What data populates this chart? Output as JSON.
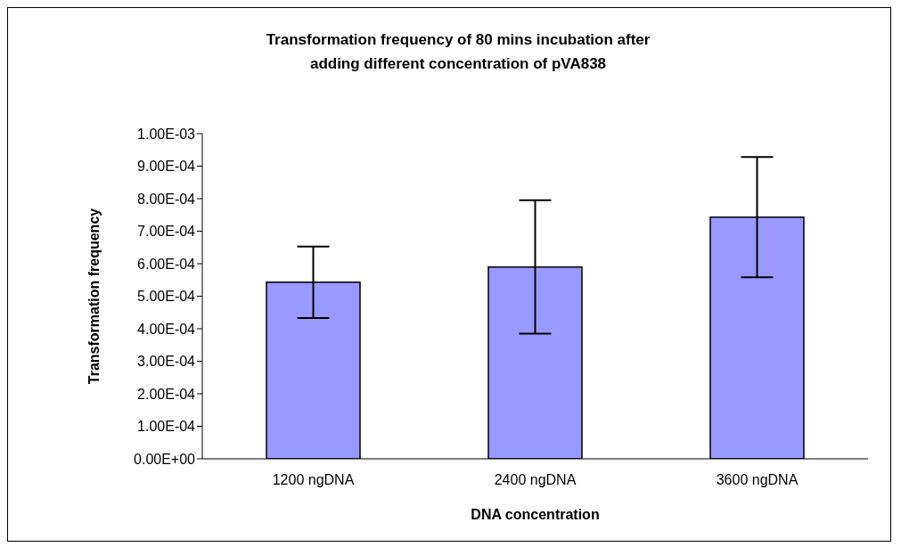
{
  "chart_data": {
    "type": "bar",
    "title": "Transformation frequency of 80 mins incubation after\nadding different concentration of pVA838",
    "xlabel": "DNA concentration",
    "ylabel": "Transformation frequency",
    "categories": [
      "1200 ngDNA",
      "2400 ngDNA",
      "3600 ngDNA"
    ],
    "values": [
      0.000543,
      0.00059,
      0.000743
    ],
    "errors": [
      0.00011,
      0.000205,
      0.000185
    ],
    "color": "#9999ff",
    "ylim": [
      0,
      0.001
    ],
    "yticks": [
      {
        "value": 0,
        "label": "0.00E+00"
      },
      {
        "value": 0.0001,
        "label": "1.00E-04"
      },
      {
        "value": 0.0002,
        "label": "2.00E-04"
      },
      {
        "value": 0.0003,
        "label": "3.00E-04"
      },
      {
        "value": 0.0004,
        "label": "4.00E-04"
      },
      {
        "value": 0.0005,
        "label": "5.00E-04"
      },
      {
        "value": 0.0006,
        "label": "6.00E-04"
      },
      {
        "value": 0.0007,
        "label": "7.00E-04"
      },
      {
        "value": 0.0008,
        "label": "8.00E-04"
      },
      {
        "value": 0.0009,
        "label": "9.00E-04"
      },
      {
        "value": 0.001,
        "label": "1.00E-03"
      }
    ],
    "grid": false,
    "legend": false
  }
}
